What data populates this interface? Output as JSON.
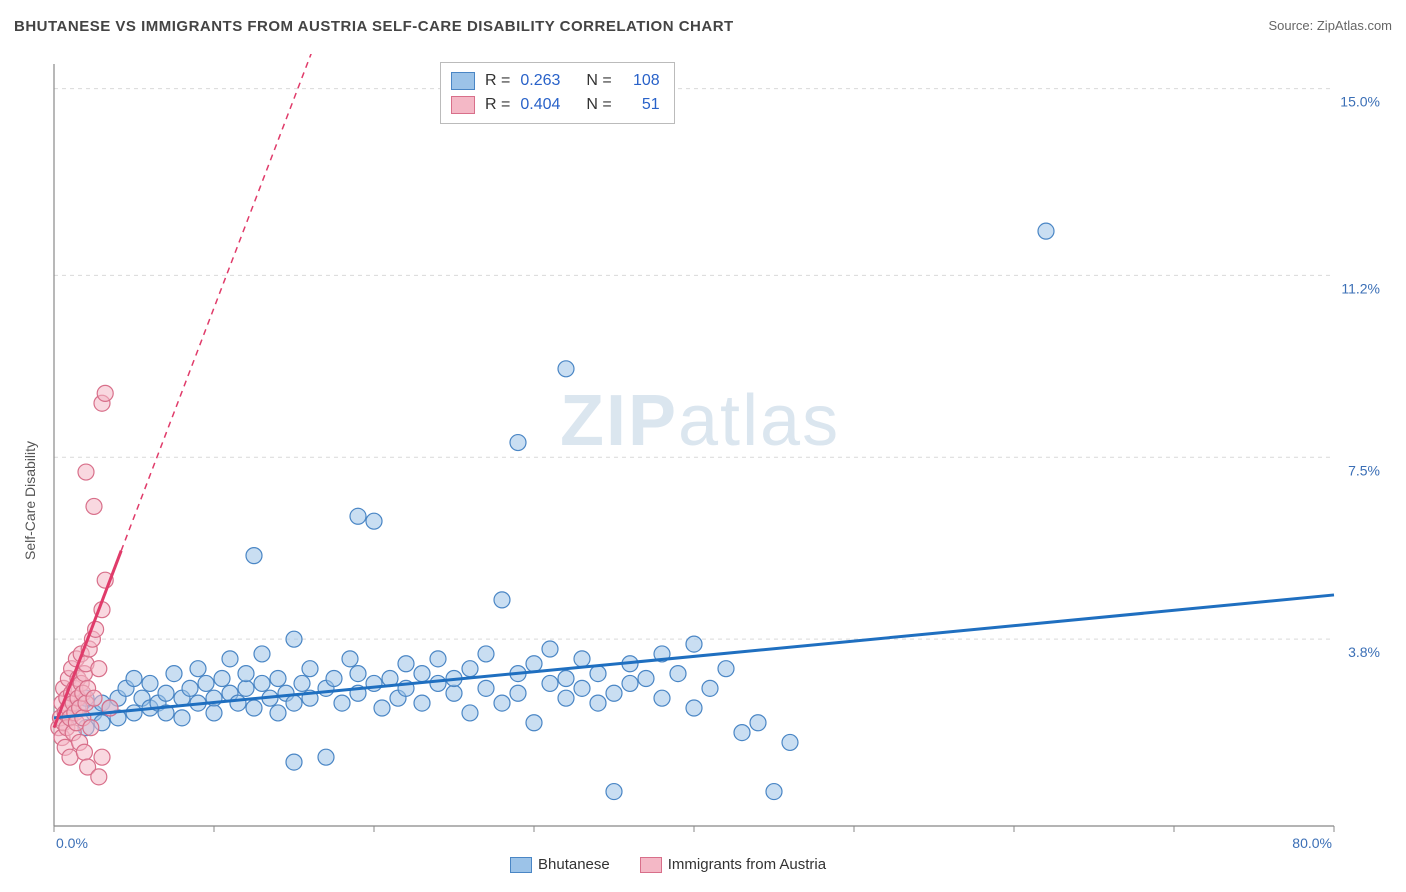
{
  "title": "BHUTANESE VS IMMIGRANTS FROM AUSTRIA SELF-CARE DISABILITY CORRELATION CHART",
  "source": "Source: ZipAtlas.com",
  "ylabel": "Self-Care Disability",
  "watermark_bold": "ZIP",
  "watermark_rest": "atlas",
  "legend_bottom": [
    {
      "label": "Bhutanese",
      "fill": "#9cc3e8",
      "stroke": "#4a86c5"
    },
    {
      "label": "Immigrants from Austria",
      "fill": "#f4b8c6",
      "stroke": "#d86f8a"
    }
  ],
  "legend_top": {
    "rows": [
      {
        "fill": "#9cc3e8",
        "stroke": "#4a86c5",
        "r_label": "R =",
        "r": "0.263",
        "n_label": "N =",
        "n": "108"
      },
      {
        "fill": "#f4b8c6",
        "stroke": "#d86f8a",
        "r_label": "R =",
        "r": "0.404",
        "n_label": "N =",
        "n": " 51"
      }
    ]
  },
  "chart": {
    "type": "scatter",
    "xlim": [
      0,
      80
    ],
    "ylim": [
      0,
      15.5
    ],
    "x_axis_labels": [
      {
        "text": "0.0%",
        "value": 0,
        "align": "start"
      },
      {
        "text": "80.0%",
        "value": 80,
        "align": "end"
      }
    ],
    "y_gridlines": [
      {
        "value": 3.8,
        "label": "3.8%"
      },
      {
        "value": 7.5,
        "label": "7.5%"
      },
      {
        "value": 11.2,
        "label": "11.2%"
      },
      {
        "value": 15.0,
        "label": "15.0%"
      }
    ],
    "x_ticks": [
      0,
      10,
      20,
      30,
      40,
      50,
      60,
      70,
      80
    ],
    "background_color": "#ffffff",
    "grid_color": "#d9d9d9",
    "axis_color": "#888888",
    "marker_radius": 8,
    "marker_opacity": 0.55,
    "series": [
      {
        "name": "Bhutanese",
        "fill": "#9cc3e8",
        "stroke": "#4a86c5",
        "trend": {
          "solid": {
            "x1": 0,
            "y1": 2.2,
            "x2": 80,
            "y2": 4.7
          },
          "color": "#1f6fc0",
          "width": 3
        },
        "points": [
          [
            1,
            2.2
          ],
          [
            1.5,
            2.4
          ],
          [
            2,
            2.0
          ],
          [
            2,
            2.6
          ],
          [
            2.5,
            2.3
          ],
          [
            3,
            2.5
          ],
          [
            3,
            2.1
          ],
          [
            3.5,
            2.4
          ],
          [
            4,
            2.6
          ],
          [
            4,
            2.2
          ],
          [
            4.5,
            2.8
          ],
          [
            5,
            2.3
          ],
          [
            5,
            3.0
          ],
          [
            5.5,
            2.6
          ],
          [
            6,
            2.4
          ],
          [
            6,
            2.9
          ],
          [
            6.5,
            2.5
          ],
          [
            7,
            2.7
          ],
          [
            7,
            2.3
          ],
          [
            7.5,
            3.1
          ],
          [
            8,
            2.6
          ],
          [
            8,
            2.2
          ],
          [
            8.5,
            2.8
          ],
          [
            9,
            2.5
          ],
          [
            9,
            3.2
          ],
          [
            9.5,
            2.9
          ],
          [
            10,
            2.6
          ],
          [
            10,
            2.3
          ],
          [
            10.5,
            3.0
          ],
          [
            11,
            2.7
          ],
          [
            11,
            3.4
          ],
          [
            11.5,
            2.5
          ],
          [
            12,
            2.8
          ],
          [
            12,
            3.1
          ],
          [
            12.5,
            2.4
          ],
          [
            13,
            2.9
          ],
          [
            13,
            3.5
          ],
          [
            13.5,
            2.6
          ],
          [
            14,
            2.3
          ],
          [
            14,
            3.0
          ],
          [
            14.5,
            2.7
          ],
          [
            15,
            3.8
          ],
          [
            15,
            2.5
          ],
          [
            15.5,
            2.9
          ],
          [
            16,
            2.6
          ],
          [
            16,
            3.2
          ],
          [
            17,
            2.8
          ],
          [
            17,
            1.4
          ],
          [
            17.5,
            3.0
          ],
          [
            18,
            2.5
          ],
          [
            18.5,
            3.4
          ],
          [
            19,
            2.7
          ],
          [
            19,
            3.1
          ],
          [
            20,
            2.9
          ],
          [
            20,
            6.2
          ],
          [
            20.5,
            2.4
          ],
          [
            21,
            3.0
          ],
          [
            21.5,
            2.6
          ],
          [
            22,
            3.3
          ],
          [
            22,
            2.8
          ],
          [
            23,
            3.1
          ],
          [
            23,
            2.5
          ],
          [
            24,
            2.9
          ],
          [
            24,
            3.4
          ],
          [
            25,
            2.7
          ],
          [
            25,
            3.0
          ],
          [
            26,
            2.3
          ],
          [
            26,
            3.2
          ],
          [
            27,
            2.8
          ],
          [
            27,
            3.5
          ],
          [
            28,
            2.5
          ],
          [
            28,
            4.6
          ],
          [
            29,
            3.1
          ],
          [
            29,
            2.7
          ],
          [
            30,
            3.3
          ],
          [
            30,
            2.1
          ],
          [
            31,
            2.9
          ],
          [
            31,
            3.6
          ],
          [
            32,
            2.6
          ],
          [
            32,
            3.0
          ],
          [
            33,
            2.8
          ],
          [
            33,
            3.4
          ],
          [
            34,
            2.5
          ],
          [
            34,
            3.1
          ],
          [
            35,
            2.7
          ],
          [
            35,
            0.7
          ],
          [
            36,
            3.3
          ],
          [
            36,
            2.9
          ],
          [
            37,
            3.0
          ],
          [
            38,
            2.6
          ],
          [
            38,
            3.5
          ],
          [
            39,
            3.1
          ],
          [
            40,
            2.4
          ],
          [
            40,
            3.7
          ],
          [
            41,
            2.8
          ],
          [
            42,
            3.2
          ],
          [
            43,
            1.9
          ],
          [
            44,
            2.1
          ],
          [
            45,
            0.7
          ],
          [
            46,
            1.7
          ],
          [
            12.5,
            5.5
          ],
          [
            15,
            1.3
          ],
          [
            19,
            6.3
          ],
          [
            29,
            7.8
          ],
          [
            32,
            9.3
          ],
          [
            62,
            12.1
          ]
        ]
      },
      {
        "name": "Immigrants from Austria",
        "fill": "#f4b8c6",
        "stroke": "#d86f8a",
        "trend": {
          "solid": {
            "x1": 0,
            "y1": 2.0,
            "x2": 4.2,
            "y2": 5.6
          },
          "dashed": {
            "x1": 4.2,
            "y1": 5.6,
            "x2": 17,
            "y2": 16.5
          },
          "color": "#e03b6a",
          "width": 3,
          "dash": "6,5"
        },
        "points": [
          [
            0.3,
            2.0
          ],
          [
            0.4,
            2.2
          ],
          [
            0.5,
            1.8
          ],
          [
            0.5,
            2.5
          ],
          [
            0.6,
            2.1
          ],
          [
            0.6,
            2.8
          ],
          [
            0.7,
            2.3
          ],
          [
            0.7,
            1.6
          ],
          [
            0.8,
            2.6
          ],
          [
            0.8,
            2.0
          ],
          [
            0.9,
            2.4
          ],
          [
            0.9,
            3.0
          ],
          [
            1.0,
            2.2
          ],
          [
            1.0,
            1.4
          ],
          [
            1.1,
            2.7
          ],
          [
            1.1,
            3.2
          ],
          [
            1.2,
            2.5
          ],
          [
            1.2,
            1.9
          ],
          [
            1.3,
            2.8
          ],
          [
            1.3,
            2.3
          ],
          [
            1.4,
            3.4
          ],
          [
            1.4,
            2.1
          ],
          [
            1.5,
            2.6
          ],
          [
            1.5,
            3.0
          ],
          [
            1.6,
            2.4
          ],
          [
            1.6,
            1.7
          ],
          [
            1.7,
            2.9
          ],
          [
            1.7,
            3.5
          ],
          [
            1.8,
            2.2
          ],
          [
            1.8,
            2.7
          ],
          [
            1.9,
            3.1
          ],
          [
            1.9,
            1.5
          ],
          [
            2.0,
            2.5
          ],
          [
            2.0,
            3.3
          ],
          [
            2.1,
            2.8
          ],
          [
            2.1,
            1.2
          ],
          [
            2.2,
            3.6
          ],
          [
            2.3,
            2.0
          ],
          [
            2.4,
            3.8
          ],
          [
            2.5,
            2.6
          ],
          [
            2.6,
            4.0
          ],
          [
            2.8,
            3.2
          ],
          [
            3.0,
            4.4
          ],
          [
            3.0,
            1.4
          ],
          [
            3.2,
            5.0
          ],
          [
            3.5,
            2.4
          ],
          [
            2.0,
            7.2
          ],
          [
            2.5,
            6.5
          ],
          [
            3.0,
            8.6
          ],
          [
            3.2,
            8.8
          ],
          [
            2.8,
            1.0
          ]
        ]
      }
    ]
  }
}
